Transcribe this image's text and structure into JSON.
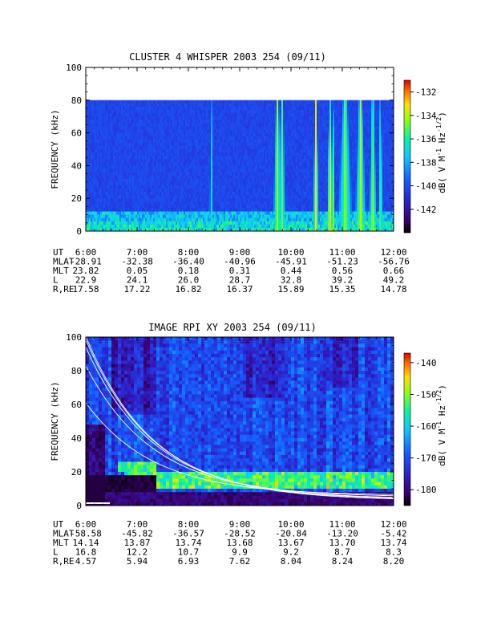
{
  "chart_data": [
    {
      "type": "heatmap",
      "title": "CLUSTER 4 WHISPER 2003 254 (09/11)",
      "ylabel": "FREQUENCY (kHz)",
      "ylim": [
        0,
        100
      ],
      "y_ticks": [
        "0",
        "20",
        "40",
        "60",
        "80",
        "100"
      ],
      "x_ticks": [
        "6:00",
        "7:00",
        "8:00",
        "9:00",
        "10:00",
        "11:00",
        "12:00"
      ],
      "data_top_khz": 80,
      "colorbar": {
        "label": "dB( V M⁻¹ Hz⁻¹ᐟ²)",
        "label_parts": [
          "dB( V M",
          "-1",
          " Hz",
          "-1/2",
          ")"
        ],
        "ticks": [
          "-132",
          "-134",
          "-136",
          "-138",
          "-140",
          "-142"
        ],
        "range": [
          -144,
          -131
        ]
      },
      "ephemeris": [
        {
          "name": "UT",
          "values": [
            "6:00",
            "7:00",
            "8:00",
            "9:00",
            "10:00",
            "11:00",
            "12:00"
          ]
        },
        {
          "name": "MLAT",
          "values": [
            "-28.91",
            "-32.38",
            "-36.40",
            "-40.96",
            "-45.91",
            "-51.23",
            "-56.76"
          ]
        },
        {
          "name": "MLT",
          "values": [
            "23.82",
            "0.05",
            "0.18",
            "0.31",
            "0.44",
            "0.56",
            "0.66"
          ]
        },
        {
          "name": "L",
          "values": [
            "22.9",
            "24.1",
            "26.0",
            "28.7",
            "32.8",
            "39.2",
            "49.2"
          ]
        },
        {
          "name": "R,RE",
          "values": [
            "17.58",
            "17.22",
            "16.82",
            "16.37",
            "15.89",
            "15.35",
            "14.78"
          ]
        }
      ]
    },
    {
      "type": "heatmap",
      "title": "IMAGE RPI XY 2003 254 (09/11)",
      "ylabel": "FREQUENCY (kHz)",
      "ylim": [
        0,
        100
      ],
      "y_ticks": [
        "0",
        "20",
        "40",
        "60",
        "80",
        "100"
      ],
      "x_ticks": [
        "6:00",
        "7:00",
        "8:00",
        "9:00",
        "10:00",
        "11:00",
        "12:00"
      ],
      "colorbar": {
        "label": "dB( V M⁻¹ Hz⁻¹ᐟ²)",
        "label_parts": [
          "dB( V M",
          "-1",
          " Hz",
          "-1/2",
          ")"
        ],
        "ticks": [
          "-140",
          "-150",
          "-160",
          "-170",
          "-180"
        ],
        "range": [
          -185,
          -137
        ]
      },
      "ephemeris": [
        {
          "name": "UT",
          "values": [
            "6:00",
            "7:00",
            "8:00",
            "9:00",
            "10:00",
            "11:00",
            "12:00"
          ]
        },
        {
          "name": "MLAT",
          "values": [
            "-58.58",
            "-45.82",
            "-36.57",
            "-28.52",
            "-20.84",
            "-13.20",
            "-5.42"
          ]
        },
        {
          "name": "MLT",
          "values": [
            "14.14",
            "13.87",
            "13.74",
            "13.68",
            "13.67",
            "13.70",
            "13.74"
          ]
        },
        {
          "name": "L",
          "values": [
            "16.8",
            "12.2",
            "10.7",
            "9.9",
            "9.2",
            "8.7",
            "8.3"
          ]
        },
        {
          "name": "R,RE",
          "values": [
            "4.57",
            "5.94",
            "6.93",
            "7.62",
            "8.04",
            "8.24",
            "8.20"
          ]
        }
      ]
    }
  ]
}
